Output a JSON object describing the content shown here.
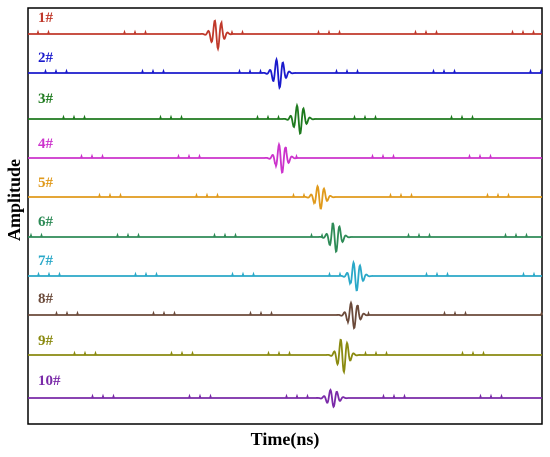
{
  "chart_data": {
    "type": "line",
    "xlabel": "Time(ns)",
    "ylabel": "Amplitude",
    "grid": false,
    "legend": "none",
    "x_range": [
      0,
      100
    ],
    "series": [
      {
        "label": "1#",
        "color": "#c0392b",
        "pulse_center": 36.0,
        "pulse_amp": 1.0
      },
      {
        "label": "2#",
        "color": "#1a1acc",
        "pulse_center": 48.0,
        "pulse_amp": 1.0
      },
      {
        "label": "3#",
        "color": "#1e7a1e",
        "pulse_center": 52.0,
        "pulse_amp": 1.0
      },
      {
        "label": "4#",
        "color": "#cc33cc",
        "pulse_center": 48.5,
        "pulse_amp": 1.0
      },
      {
        "label": "5#",
        "color": "#e09a1c",
        "pulse_center": 56.0,
        "pulse_amp": 0.8
      },
      {
        "label": "6#",
        "color": "#2e8b57",
        "pulse_center": 59.0,
        "pulse_amp": 1.0
      },
      {
        "label": "7#",
        "color": "#2aa8c8",
        "pulse_center": 63.0,
        "pulse_amp": 1.0
      },
      {
        "label": "8#",
        "color": "#6b4a3a",
        "pulse_center": 62.5,
        "pulse_amp": 0.9
      },
      {
        "label": "9#",
        "color": "#8a8a10",
        "pulse_center": 60.5,
        "pulse_amp": 1.15
      },
      {
        "label": "10#",
        "color": "#7a2aa8",
        "pulse_center": 58.5,
        "pulse_amp": 0.6
      }
    ]
  }
}
